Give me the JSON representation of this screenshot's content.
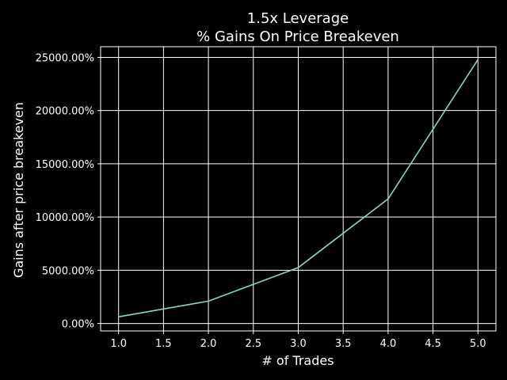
{
  "chart_data": {
    "type": "line",
    "title_lines": [
      "1.5x Leverage",
      "% Gains On Price Breakeven"
    ],
    "xlabel": "# of Trades",
    "ylabel": "Gains after price breakeven",
    "xlim": [
      0.8,
      5.2
    ],
    "ylim": [
      -700,
      26000
    ],
    "xticks": [
      1.0,
      1.5,
      2.0,
      2.5,
      3.0,
      3.5,
      4.0,
      4.5,
      5.0
    ],
    "xtick_labels": [
      "1.0",
      "1.5",
      "2.0",
      "2.5",
      "3.0",
      "3.5",
      "4.0",
      "4.5",
      "5.0"
    ],
    "yticks": [
      0,
      5000,
      10000,
      15000,
      20000,
      25000
    ],
    "ytick_labels": [
      "0.00%",
      "5000.00%",
      "10000.00%",
      "15000.00%",
      "20000.00%",
      "25000.00%"
    ],
    "grid": true,
    "series": [
      {
        "color": "#8dd3c7",
        "x": [
          1,
          2,
          3,
          4,
          5
        ],
        "y": [
          625,
          2100,
          5250,
          11700,
          24800
        ]
      }
    ]
  }
}
